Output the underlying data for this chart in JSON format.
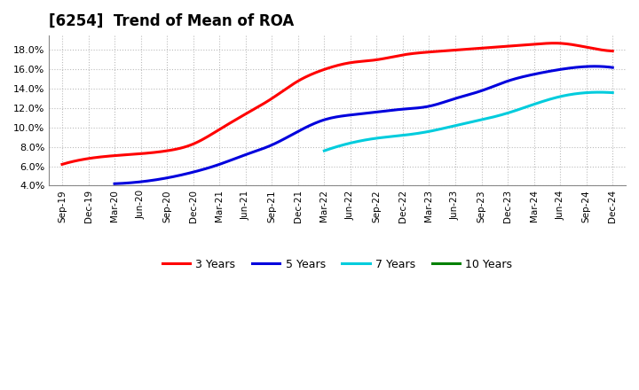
{
  "title": "[6254]  Trend of Mean of ROA",
  "background_color": "#ffffff",
  "plot_background_color": "#ffffff",
  "grid_color": "#aaaaaa",
  "ylim": [
    0.04,
    0.195
  ],
  "yticks": [
    0.04,
    0.06,
    0.08,
    0.1,
    0.12,
    0.14,
    0.16,
    0.18
  ],
  "x_labels": [
    "Sep-19",
    "Dec-19",
    "Mar-20",
    "Jun-20",
    "Sep-20",
    "Dec-20",
    "Mar-21",
    "Jun-21",
    "Sep-21",
    "Dec-21",
    "Mar-22",
    "Jun-22",
    "Sep-22",
    "Dec-22",
    "Mar-23",
    "Jun-23",
    "Sep-23",
    "Dec-23",
    "Mar-24",
    "Jun-24",
    "Sep-24",
    "Dec-24"
  ],
  "series": {
    "3 Years": {
      "color": "#ff0000",
      "data_x": [
        0,
        1,
        2,
        3,
        4,
        5,
        6,
        7,
        8,
        9,
        10,
        11,
        12,
        13,
        14,
        15,
        16,
        17,
        18,
        19,
        20,
        21
      ],
      "data_y": [
        0.062,
        0.068,
        0.071,
        0.073,
        0.076,
        0.083,
        0.098,
        0.114,
        0.13,
        0.148,
        0.16,
        0.167,
        0.17,
        0.175,
        0.178,
        0.18,
        0.182,
        0.184,
        0.186,
        0.187,
        0.183,
        0.179
      ]
    },
    "5 Years": {
      "color": "#0000dd",
      "data_x": [
        2,
        3,
        4,
        5,
        6,
        7,
        8,
        9,
        10,
        11,
        12,
        13,
        14,
        15,
        16,
        17,
        18,
        19,
        20,
        21
      ],
      "data_y": [
        0.042,
        0.044,
        0.048,
        0.054,
        0.062,
        0.072,
        0.082,
        0.096,
        0.108,
        0.113,
        0.116,
        0.119,
        0.122,
        0.13,
        0.138,
        0.148,
        0.155,
        0.16,
        0.163,
        0.162
      ]
    },
    "7 Years": {
      "color": "#00ccdd",
      "data_x": [
        10,
        11,
        12,
        13,
        14,
        15,
        16,
        17,
        18,
        19,
        20,
        21
      ],
      "data_y": [
        0.076,
        0.084,
        0.089,
        0.092,
        0.096,
        0.102,
        0.108,
        0.115,
        0.124,
        0.132,
        0.136,
        0.136
      ]
    },
    "10 Years": {
      "color": "#008000",
      "data_x": [],
      "data_y": []
    }
  },
  "legend_entries": [
    "3 Years",
    "5 Years",
    "7 Years",
    "10 Years"
  ],
  "legend_colors": [
    "#ff0000",
    "#0000dd",
    "#00ccdd",
    "#008000"
  ]
}
